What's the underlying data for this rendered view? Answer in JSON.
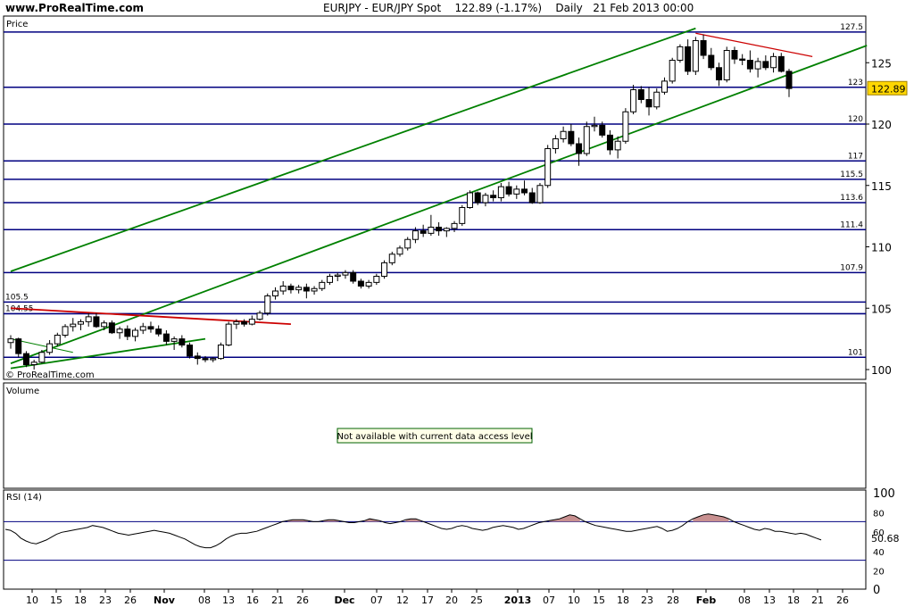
{
  "header": {
    "site": "www.ProRealTime.com",
    "symbol": "EURJPY",
    "instrument": "EUR/JPY Spot",
    "last": "122.89",
    "change": "(-1.17%)",
    "period": "Daily",
    "date": "21 Feb 2013 00:00"
  },
  "panes": {
    "price_label": "Price",
    "copyright": "© ProRealTime.com",
    "volume_label": "Volume",
    "volume_message": "Not available with current data access level",
    "rsi_label": "RSI (14)"
  },
  "colors": {
    "up": "#ffffff",
    "down": "#000000",
    "hline": "#000080",
    "channel": "#008000",
    "resistance": "#cc0000",
    "price_badge": "#ffd700",
    "rsi_fill": "#c89090"
  },
  "chart_data": [
    {
      "type": "candlestick",
      "title": "",
      "y_ticks": [
        100,
        105,
        110,
        115,
        120,
        125
      ],
      "ylim": [
        99.2,
        128.8
      ],
      "x_tick_labels": [
        "10",
        "15",
        "18",
        "23",
        "26",
        "Nov",
        "08",
        "13",
        "16",
        "21",
        "26",
        "Dec",
        "07",
        "12",
        "17",
        "20",
        "25",
        "2013",
        "07",
        "10",
        "15",
        "18",
        "23",
        "28",
        "Feb",
        "08",
        "13",
        "18",
        "21",
        "26"
      ],
      "levels": [
        127.5,
        123,
        120,
        117,
        115.5,
        113.6,
        111.4,
        107.9,
        105.5,
        104.55,
        101
      ],
      "level_labels": [
        "127.5",
        "123",
        "120",
        "117",
        "115.5",
        "113.6",
        "111.4",
        "107.9",
        "105.5",
        "104.55",
        "101"
      ],
      "last_price_label": "122.89",
      "ohlc": [
        [
          102.2,
          102.8,
          101.7,
          102.5
        ],
        [
          102.5,
          102.6,
          101.0,
          101.3
        ],
        [
          101.3,
          101.5,
          100.2,
          100.4
        ],
        [
          100.4,
          100.8,
          100.0,
          100.6
        ],
        [
          100.6,
          101.6,
          100.5,
          101.4
        ],
        [
          101.4,
          102.4,
          101.2,
          102.1
        ],
        [
          102.1,
          103.0,
          101.9,
          102.8
        ],
        [
          102.8,
          103.7,
          102.6,
          103.5
        ],
        [
          103.5,
          104.2,
          103.1,
          103.7
        ],
        [
          103.7,
          104.1,
          103.2,
          103.9
        ],
        [
          103.9,
          104.6,
          103.5,
          104.3
        ],
        [
          104.3,
          104.6,
          103.4,
          103.5
        ],
        [
          103.5,
          104.0,
          103.2,
          103.8
        ],
        [
          103.8,
          104.0,
          102.9,
          103.0
        ],
        [
          103.0,
          103.5,
          102.5,
          103.3
        ],
        [
          103.3,
          103.6,
          102.4,
          102.7
        ],
        [
          102.7,
          103.4,
          102.3,
          103.2
        ],
        [
          103.2,
          103.8,
          102.9,
          103.5
        ],
        [
          103.5,
          103.9,
          103.0,
          103.3
        ],
        [
          103.3,
          103.6,
          102.7,
          102.9
        ],
        [
          102.9,
          103.2,
          102.0,
          102.3
        ],
        [
          102.3,
          102.7,
          101.6,
          102.5
        ],
        [
          102.5,
          102.8,
          101.8,
          102.0
        ],
        [
          102.0,
          102.2,
          100.9,
          101.1
        ],
        [
          101.1,
          101.4,
          100.4,
          100.9
        ],
        [
          100.9,
          101.1,
          100.6,
          100.8
        ],
        [
          100.8,
          101.0,
          100.6,
          100.9
        ],
        [
          100.9,
          102.2,
          100.8,
          102.0
        ],
        [
          102.0,
          103.9,
          101.9,
          103.7
        ],
        [
          103.7,
          104.1,
          103.3,
          103.9
        ],
        [
          103.9,
          104.1,
          103.5,
          103.7
        ],
        [
          103.7,
          104.4,
          103.6,
          104.1
        ],
        [
          104.1,
          104.8,
          104.0,
          104.6
        ],
        [
          104.6,
          106.2,
          104.4,
          106.0
        ],
        [
          106.0,
          106.7,
          105.7,
          106.4
        ],
        [
          106.4,
          107.2,
          106.1,
          106.8
        ],
        [
          106.8,
          107.0,
          106.2,
          106.5
        ],
        [
          106.5,
          106.9,
          106.2,
          106.7
        ],
        [
          106.7,
          107.0,
          105.8,
          106.4
        ],
        [
          106.4,
          106.8,
          106.1,
          106.6
        ],
        [
          106.6,
          107.3,
          106.4,
          107.1
        ],
        [
          107.1,
          107.8,
          106.9,
          107.6
        ],
        [
          107.6,
          107.9,
          107.2,
          107.7
        ],
        [
          107.7,
          108.1,
          107.4,
          107.9
        ],
        [
          107.9,
          108.1,
          107.0,
          107.2
        ],
        [
          107.2,
          107.4,
          106.6,
          106.8
        ],
        [
          106.8,
          107.3,
          106.6,
          107.1
        ],
        [
          107.1,
          107.8,
          106.9,
          107.6
        ],
        [
          107.6,
          108.9,
          107.4,
          108.7
        ],
        [
          108.7,
          109.6,
          108.5,
          109.4
        ],
        [
          109.4,
          110.1,
          109.2,
          109.9
        ],
        [
          109.9,
          110.8,
          109.7,
          110.6
        ],
        [
          110.6,
          111.6,
          110.3,
          111.3
        ],
        [
          111.3,
          111.8,
          110.8,
          111.1
        ],
        [
          111.1,
          112.6,
          110.9,
          111.6
        ],
        [
          111.6,
          112.0,
          110.9,
          111.3
        ],
        [
          111.3,
          111.6,
          110.8,
          111.5
        ],
        [
          111.5,
          112.1,
          111.2,
          111.9
        ],
        [
          111.9,
          113.4,
          111.7,
          113.2
        ],
        [
          113.2,
          114.6,
          113.1,
          114.4
        ],
        [
          114.4,
          114.5,
          113.4,
          113.6
        ],
        [
          113.6,
          114.4,
          113.3,
          114.2
        ],
        [
          114.2,
          114.6,
          113.7,
          114.0
        ],
        [
          114.0,
          115.2,
          113.7,
          114.9
        ],
        [
          114.9,
          115.3,
          114.1,
          114.3
        ],
        [
          114.3,
          115.0,
          113.9,
          114.7
        ],
        [
          114.7,
          115.4,
          114.2,
          114.4
        ],
        [
          114.4,
          114.8,
          113.5,
          113.6
        ],
        [
          113.6,
          115.2,
          113.5,
          115.0
        ],
        [
          115.0,
          118.3,
          114.8,
          118.0
        ],
        [
          118.0,
          119.1,
          117.6,
          118.8
        ],
        [
          118.8,
          119.8,
          118.5,
          119.4
        ],
        [
          119.4,
          120.0,
          118.2,
          118.4
        ],
        [
          118.4,
          118.9,
          116.6,
          117.6
        ],
        [
          117.6,
          120.2,
          117.4,
          119.8
        ],
        [
          119.8,
          120.6,
          119.4,
          119.9
        ],
        [
          119.9,
          120.2,
          118.9,
          119.1
        ],
        [
          119.1,
          119.5,
          117.5,
          117.9
        ],
        [
          117.9,
          119.0,
          117.2,
          118.6
        ],
        [
          118.6,
          121.3,
          118.4,
          121.0
        ],
        [
          121.0,
          123.2,
          120.8,
          122.8
        ],
        [
          122.8,
          123.1,
          121.7,
          122.0
        ],
        [
          122.0,
          123.0,
          120.7,
          121.4
        ],
        [
          121.4,
          122.9,
          121.2,
          122.6
        ],
        [
          122.6,
          123.8,
          122.4,
          123.5
        ],
        [
          123.5,
          125.4,
          123.3,
          125.2
        ],
        [
          125.2,
          126.5,
          125.0,
          126.3
        ],
        [
          126.3,
          126.9,
          124.0,
          124.3
        ],
        [
          124.3,
          127.1,
          124.0,
          126.8
        ],
        [
          126.8,
          127.3,
          125.3,
          125.6
        ],
        [
          125.6,
          126.2,
          124.4,
          124.6
        ],
        [
          124.6,
          125.0,
          123.1,
          123.6
        ],
        [
          123.6,
          126.3,
          123.4,
          126.0
        ],
        [
          126.0,
          126.3,
          124.9,
          125.3
        ],
        [
          125.3,
          125.7,
          124.8,
          125.2
        ],
        [
          125.2,
          126.0,
          124.2,
          124.5
        ],
        [
          124.5,
          125.4,
          123.8,
          125.1
        ],
        [
          125.1,
          125.6,
          124.4,
          124.6
        ],
        [
          124.6,
          125.8,
          124.2,
          125.5
        ],
        [
          125.5,
          125.8,
          124.2,
          124.3
        ],
        [
          124.3,
          124.5,
          122.2,
          122.9
        ]
      ],
      "channel": {
        "lower": [
          [
            0,
            100.5
          ],
          [
            110,
            126.4
          ]
        ],
        "upper": [
          [
            0,
            108.0
          ],
          [
            88,
            127.8
          ]
        ]
      },
      "trendlines": {
        "red_upper": [
          [
            0,
            105.0
          ],
          [
            36,
            103.7
          ]
        ],
        "red_falling": [
          [
            88,
            127.4
          ],
          [
            103,
            125.5
          ]
        ],
        "green_lower": [
          [
            0,
            100.1
          ],
          [
            25,
            102.5
          ]
        ],
        "green_small": [
          [
            0,
            102.5
          ],
          [
            8,
            101.4
          ]
        ]
      }
    },
    {
      "type": "bar",
      "title": "",
      "values": []
    },
    {
      "type": "line",
      "title": "",
      "ylim": [
        0,
        100
      ],
      "y_ticks": [
        0,
        20,
        40,
        60,
        80,
        100
      ],
      "levels": [
        70,
        30
      ],
      "last_value_label": "50.68",
      "values": [
        62,
        61,
        58,
        53,
        50,
        48,
        47,
        49,
        51,
        54,
        57,
        59,
        60,
        61,
        62,
        63,
        64,
        66,
        65,
        64,
        62,
        60,
        58,
        57,
        56,
        57,
        58,
        59,
        60,
        61,
        60,
        59,
        58,
        56,
        54,
        52,
        49,
        46,
        44,
        43,
        43,
        45,
        48,
        52,
        55,
        57,
        58,
        58,
        59,
        60,
        62,
        64,
        66,
        68,
        70,
        71,
        72,
        72,
        72,
        71,
        70,
        70,
        71,
        72,
        72,
        71,
        70,
        69,
        69,
        70,
        71,
        73,
        72,
        71,
        69,
        68,
        69,
        70,
        72,
        73,
        73,
        71,
        69,
        67,
        65,
        63,
        62,
        63,
        65,
        66,
        65,
        63,
        62,
        61,
        62,
        64,
        65,
        66,
        65,
        64,
        62,
        63,
        65,
        67,
        69,
        70,
        71,
        72,
        73,
        75,
        77,
        76,
        73,
        70,
        68,
        66,
        65,
        64,
        63,
        62,
        61,
        60,
        60,
        61,
        62,
        63,
        64,
        65,
        63,
        60,
        61,
        63,
        66,
        70,
        73,
        75,
        77,
        78,
        77,
        76,
        75,
        73,
        70,
        68,
        66,
        64,
        62,
        61,
        63,
        62,
        60,
        60,
        59,
        58,
        57,
        58,
        57,
        55,
        53,
        51
      ]
    }
  ]
}
